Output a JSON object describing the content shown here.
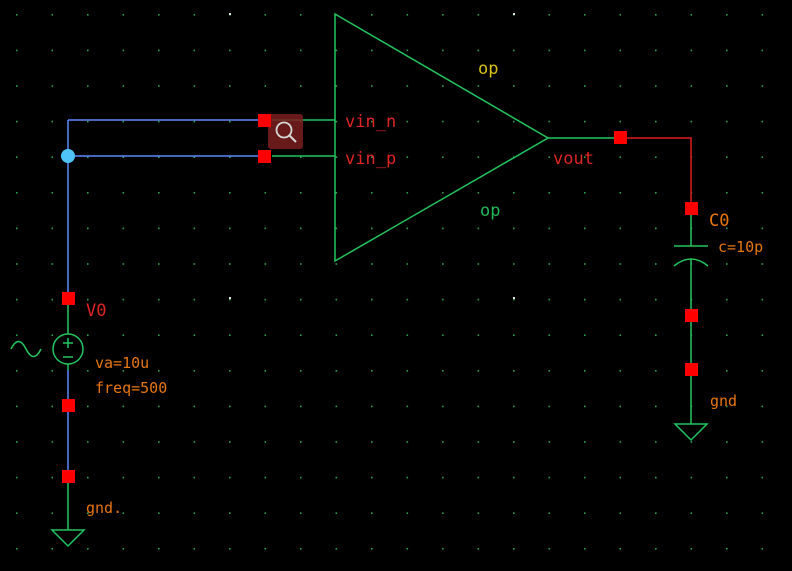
{
  "colors": {
    "background": "#000000",
    "grid_dot": "#2f9e4f",
    "wire_blue": "#5f87ff",
    "wire_red": "#e01b1b",
    "symbol_green": "#22c55e",
    "pin_red": "#ff0000",
    "label_red": "#e02424",
    "label_orange": "#e8760f",
    "label_yellow": "#d8c21a",
    "label_green": "#22b85a",
    "selection_dot": "#4fc3f7"
  },
  "opamp": {
    "instance_name": "op",
    "cell_name": "op",
    "pins": {
      "inverting": "vin_n",
      "noninverting": "vin_p",
      "output": "vout"
    }
  },
  "source": {
    "instance_name": "V0",
    "params": [
      "va=10u",
      "freq=500"
    ],
    "ground_label": "gnd."
  },
  "capacitor": {
    "instance_name": "C0",
    "value": "c=10p",
    "ground_label": "gnd"
  },
  "icons": {
    "probe": "magnifier-icon",
    "source_symbol": "ac-voltage-source-icon",
    "ground_symbol": "ground-icon",
    "capacitor_symbol": "capacitor-icon"
  }
}
